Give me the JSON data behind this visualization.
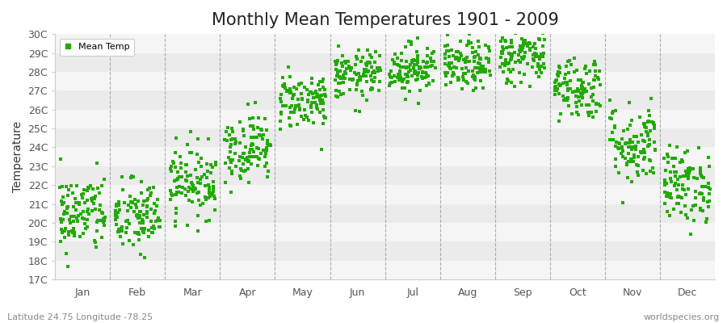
{
  "title": "Monthly Mean Temperatures 1901 - 2009",
  "ylabel": "Temperature",
  "xlabel_bottom_left": "Latitude 24.75 Longitude -78.25",
  "xlabel_bottom_right": "worldspecies.org",
  "background_color": "#ffffff",
  "plot_bg_color": "#f5f5f5",
  "band_color_light": "#ebebeb",
  "band_color_white": "#f5f5f5",
  "dot_color": "#22aa00",
  "dot_size": 7,
  "ylim": [
    17,
    30
  ],
  "yticks": [
    17,
    18,
    19,
    20,
    21,
    22,
    23,
    24,
    25,
    26,
    27,
    28,
    29,
    30
  ],
  "ytick_labels": [
    "17C",
    "18C",
    "19C",
    "20C",
    "21C",
    "22C",
    "23C",
    "24C",
    "25C",
    "26C",
    "27C",
    "28C",
    "29C",
    "30C"
  ],
  "month_names": [
    "Jan",
    "Feb",
    "Mar",
    "Apr",
    "May",
    "Jun",
    "Jul",
    "Aug",
    "Sep",
    "Oct",
    "Nov",
    "Dec"
  ],
  "month_means": [
    20.5,
    20.3,
    22.2,
    24.0,
    26.5,
    27.8,
    28.2,
    28.3,
    28.8,
    27.2,
    24.2,
    22.0
  ],
  "month_stds": [
    1.05,
    1.0,
    0.95,
    0.9,
    0.75,
    0.65,
    0.65,
    0.65,
    0.7,
    0.85,
    1.1,
    1.0
  ],
  "n_years": 109,
  "seed": 42,
  "title_fontsize": 15,
  "legend_label": "Mean Temp"
}
